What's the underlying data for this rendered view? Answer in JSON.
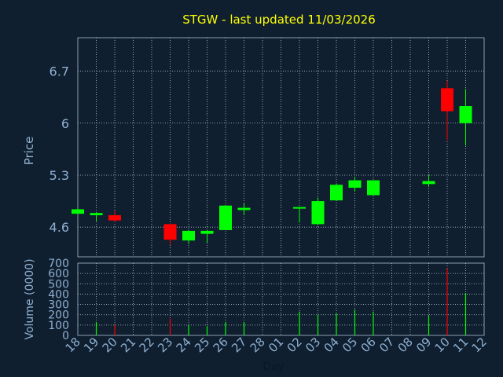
{
  "chart_data": [
    {
      "type": "candlestick",
      "title": "STGW - last updated 11/03/2026",
      "ylabel": "Price",
      "ylim": [
        4.2,
        7.15
      ],
      "yticks": [
        4.6,
        5.3,
        6,
        6.7
      ],
      "ytick_labels": [
        "4.6",
        "5.3",
        "6",
        "6.7"
      ],
      "grid": true,
      "up_color": "#00ff00",
      "down_color": "#ff0000",
      "candles": [
        {
          "day": "18",
          "open": 4.78,
          "close": 4.84,
          "high": 4.86,
          "low": 4.77
        },
        {
          "day": "19",
          "open": 4.76,
          "close": 4.79,
          "high": 4.8,
          "low": 4.68
        },
        {
          "day": "20",
          "open": 4.76,
          "close": 4.69,
          "high": 4.82,
          "low": 4.67
        },
        {
          "day": "23",
          "open": 4.64,
          "close": 4.43,
          "high": 4.65,
          "low": 4.36
        },
        {
          "day": "24",
          "open": 4.42,
          "close": 4.55,
          "high": 4.56,
          "low": 4.37
        },
        {
          "day": "25",
          "open": 4.51,
          "close": 4.55,
          "high": 4.56,
          "low": 4.39
        },
        {
          "day": "26",
          "open": 4.56,
          "close": 4.89,
          "high": 4.89,
          "low": 4.56
        },
        {
          "day": "27",
          "open": 4.83,
          "close": 4.86,
          "high": 4.92,
          "low": 4.77
        },
        {
          "day": "02",
          "open": 4.86,
          "close": 4.87,
          "high": 4.87,
          "low": 4.66
        },
        {
          "day": "03",
          "open": 4.64,
          "close": 4.95,
          "high": 5.0,
          "low": 4.63
        },
        {
          "day": "04",
          "open": 4.96,
          "close": 5.17,
          "high": 5.19,
          "low": 4.96
        },
        {
          "day": "05",
          "open": 5.13,
          "close": 5.23,
          "high": 5.28,
          "low": 5.08
        },
        {
          "day": "06",
          "open": 5.03,
          "close": 5.23,
          "high": 5.23,
          "low": 5.03
        },
        {
          "day": "09",
          "open": 5.18,
          "close": 5.22,
          "high": 5.31,
          "low": 5.14
        },
        {
          "day": "10",
          "open": 6.47,
          "close": 6.16,
          "high": 6.57,
          "low": 5.77
        },
        {
          "day": "11",
          "open": 6.0,
          "close": 6.23,
          "high": 6.46,
          "low": 5.7
        }
      ]
    },
    {
      "type": "bar",
      "ylabel": "Volume (0000)",
      "xlabel": "Day",
      "ylim": [
        0,
        700
      ],
      "yticks": [
        0,
        100,
        200,
        300,
        400,
        500,
        600,
        700
      ],
      "ytick_labels": [
        "0",
        "100",
        "200",
        "300",
        "400",
        "500",
        "600",
        "700"
      ],
      "x_labels": [
        "18",
        "19",
        "20",
        "21",
        "22",
        "23",
        "24",
        "25",
        "26",
        "27",
        "28",
        "01",
        "02",
        "03",
        "04",
        "05",
        "06",
        "07",
        "08",
        "09",
        "10",
        "11",
        "12"
      ],
      "bars": [
        {
          "day": "19",
          "value": 130,
          "color": "#00ff00"
        },
        {
          "day": "20",
          "value": 100,
          "color": "#ff0000"
        },
        {
          "day": "23",
          "value": 160,
          "color": "#ff0000"
        },
        {
          "day": "24",
          "value": 100,
          "color": "#00ff00"
        },
        {
          "day": "25",
          "value": 90,
          "color": "#00ff00"
        },
        {
          "day": "26",
          "value": 130,
          "color": "#00ff00"
        },
        {
          "day": "27",
          "value": 130,
          "color": "#00ff00"
        },
        {
          "day": "02",
          "value": 230,
          "color": "#00ff00"
        },
        {
          "day": "03",
          "value": 200,
          "color": "#00ff00"
        },
        {
          "day": "04",
          "value": 210,
          "color": "#00ff00"
        },
        {
          "day": "05",
          "value": 250,
          "color": "#00ff00"
        },
        {
          "day": "06",
          "value": 230,
          "color": "#00ff00"
        },
        {
          "day": "09",
          "value": 190,
          "color": "#00ff00"
        },
        {
          "day": "10",
          "value": 650,
          "color": "#ff0000"
        },
        {
          "day": "11",
          "value": 410,
          "color": "#00ff00"
        }
      ]
    }
  ]
}
